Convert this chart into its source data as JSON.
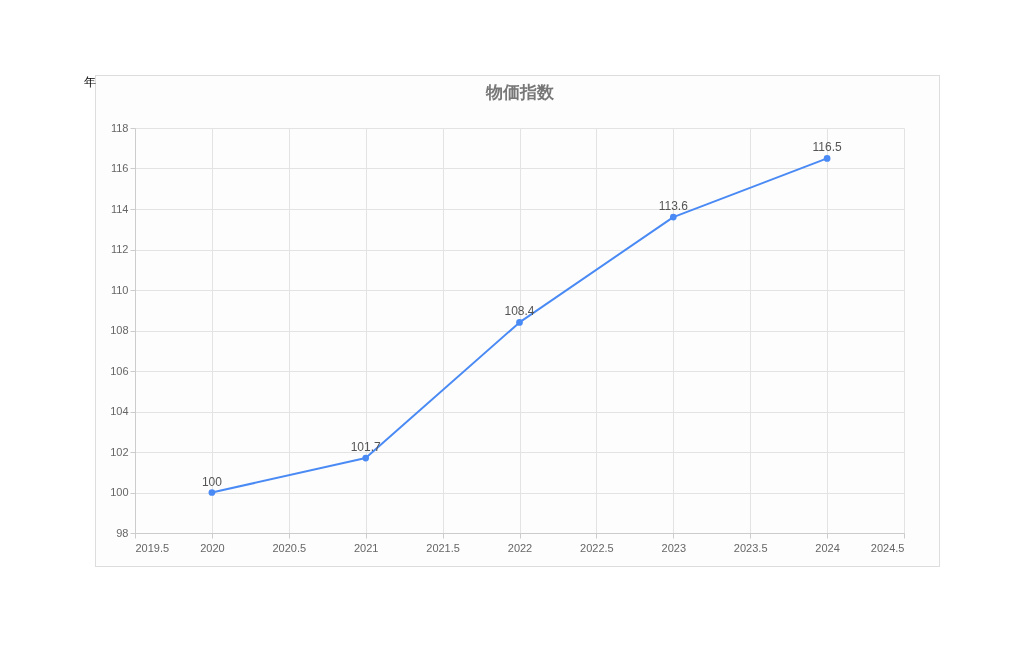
{
  "chart_data": {
    "type": "line",
    "title": "物価指数",
    "annotations": [
      "年"
    ],
    "x": [
      2020,
      2021,
      2022,
      2023,
      2024
    ],
    "series": [
      {
        "color": "#4a8af4",
        "values": [
          100,
          101.7,
          108.4,
          113.6,
          116.5
        ]
      }
    ],
    "xlim": [
      2019.5,
      2024.5
    ],
    "xticks": [
      2019.5,
      2020,
      2020.5,
      2021,
      2021.5,
      2022,
      2022.5,
      2023,
      2023.5,
      2024,
      2024.5
    ],
    "ylim": [
      98,
      118
    ],
    "yticks": [
      98,
      100,
      102,
      104,
      106,
      108,
      110,
      112,
      114,
      116,
      118
    ],
    "grid": true,
    "marker": "circle",
    "data_labels": true,
    "legend": false
  }
}
